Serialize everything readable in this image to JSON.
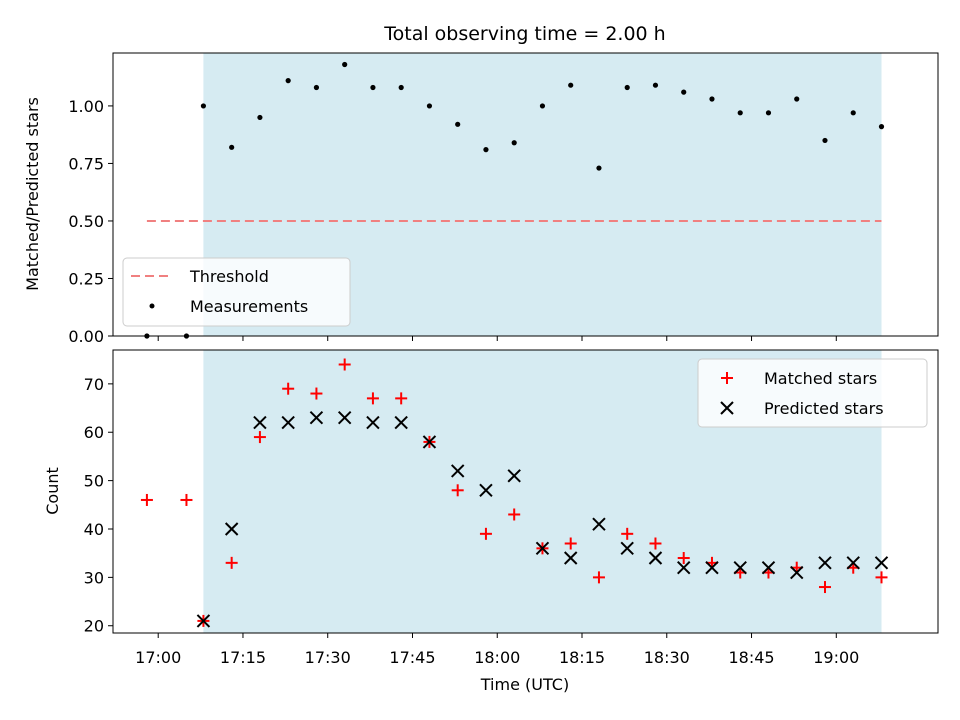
{
  "figure": {
    "title": "Total observing time = 2.00 h"
  },
  "colors": {
    "span": "#add8e6",
    "threshold": "#f08080",
    "matched": "#ff0000",
    "predicted": "#000000",
    "measurement": "#000000"
  },
  "chart_data": [
    {
      "type": "scatter",
      "ylabel": "Matched/Predicted stars",
      "ylim": [
        0.0,
        1.23
      ],
      "yticks": [
        "0.00",
        "0.25",
        "0.50",
        "0.75",
        "1.00"
      ],
      "xlim": [
        "16:52",
        "19:18"
      ],
      "grid": false,
      "legend_position": "lower-left",
      "observing_span": [
        "17:08",
        "19:08"
      ],
      "threshold": {
        "name": "Threshold",
        "value": 0.5,
        "x_range": [
          "16:58",
          "19:08"
        ]
      },
      "series": [
        {
          "name": "Measurements",
          "x": [
            "16:58",
            "17:05",
            "17:08",
            "17:13",
            "17:18",
            "17:23",
            "17:28",
            "17:33",
            "17:38",
            "17:43",
            "17:48",
            "17:53",
            "17:58",
            "18:03",
            "18:08",
            "18:13",
            "18:18",
            "18:23",
            "18:28",
            "18:33",
            "18:38",
            "18:43",
            "18:48",
            "18:53",
            "18:58",
            "19:03",
            "19:08"
          ],
          "y": [
            0.0,
            0.0,
            1.0,
            0.82,
            0.95,
            1.11,
            1.08,
            1.18,
            1.08,
            1.08,
            1.0,
            0.92,
            0.81,
            0.84,
            1.0,
            1.09,
            0.73,
            1.08,
            1.09,
            1.06,
            1.03,
            0.97,
            0.97,
            1.03,
            0.85,
            0.97,
            0.91
          ]
        }
      ]
    },
    {
      "type": "scatter",
      "xlabel": "Time (UTC)",
      "ylabel": "Count",
      "ylim": [
        18.5,
        77.0
      ],
      "yticks": [
        "20",
        "30",
        "40",
        "50",
        "60",
        "70"
      ],
      "xticks": [
        "17:00",
        "17:15",
        "17:30",
        "17:45",
        "18:00",
        "18:15",
        "18:30",
        "18:45",
        "19:00"
      ],
      "xlim": [
        "16:52",
        "19:18"
      ],
      "grid": false,
      "legend_position": "top-right",
      "observing_span": [
        "17:08",
        "19:08"
      ],
      "series": [
        {
          "name": "Matched stars",
          "marker": "+",
          "x": [
            "16:58",
            "17:05",
            "17:08",
            "17:13",
            "17:18",
            "17:23",
            "17:28",
            "17:33",
            "17:38",
            "17:43",
            "17:48",
            "17:53",
            "17:58",
            "18:03",
            "18:08",
            "18:13",
            "18:18",
            "18:23",
            "18:28",
            "18:33",
            "18:38",
            "18:43",
            "18:48",
            "18:53",
            "18:58",
            "19:03",
            "19:08"
          ],
          "y": [
            46,
            46,
            21,
            33,
            59,
            69,
            68,
            74,
            67,
            67,
            58,
            48,
            39,
            43,
            36,
            37,
            30,
            39,
            37,
            34,
            33,
            31,
            31,
            32,
            28,
            32,
            30
          ]
        },
        {
          "name": "Predicted stars",
          "marker": "x",
          "x": [
            "17:08",
            "17:13",
            "17:18",
            "17:23",
            "17:28",
            "17:33",
            "17:38",
            "17:43",
            "17:48",
            "17:53",
            "17:58",
            "18:03",
            "18:08",
            "18:13",
            "18:18",
            "18:23",
            "18:28",
            "18:33",
            "18:38",
            "18:43",
            "18:48",
            "18:53",
            "18:58",
            "19:03",
            "19:08"
          ],
          "y": [
            21,
            40,
            62,
            62,
            63,
            63,
            62,
            62,
            58,
            52,
            48,
            51,
            36,
            34,
            41,
            36,
            34,
            32,
            32,
            32,
            32,
            31,
            33,
            33,
            33
          ]
        }
      ]
    }
  ]
}
